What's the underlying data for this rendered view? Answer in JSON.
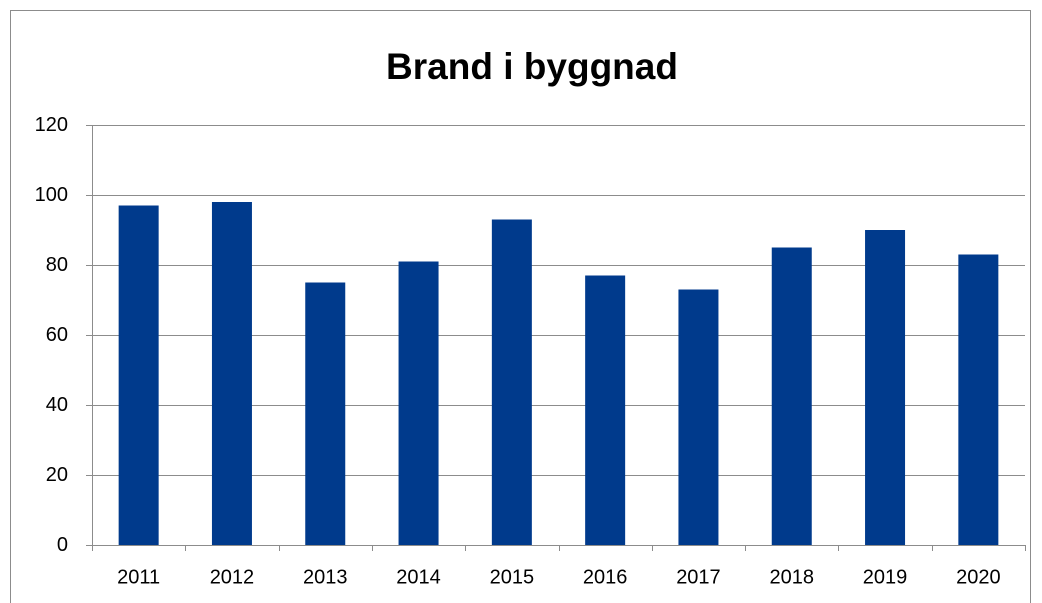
{
  "chart_data": {
    "type": "bar",
    "title": "Brand i byggnad",
    "categories": [
      "2011",
      "2012",
      "2013",
      "2014",
      "2015",
      "2016",
      "2017",
      "2018",
      "2019",
      "2020"
    ],
    "values": [
      97,
      98,
      75,
      81,
      93,
      77,
      73,
      85,
      90,
      83
    ],
    "color": "#003a8c",
    "ylim": [
      0,
      120
    ],
    "yticks": [
      0,
      20,
      40,
      60,
      80,
      100,
      120
    ],
    "grid": true
  }
}
